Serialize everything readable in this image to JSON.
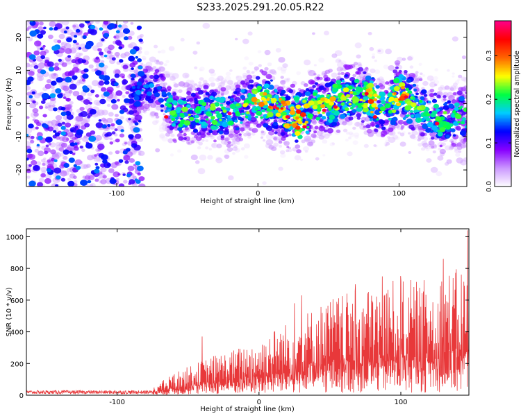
{
  "title": "S233.2025.291.20.05.R22",
  "chart_data": [
    {
      "type": "heatmap",
      "xlabel": "Height of straight line (km)",
      "ylabel": "Frequency (Hz)",
      "xlim": [
        -164,
        148
      ],
      "ylim": [
        -25,
        25
      ],
      "xticks": [
        -100,
        0,
        100
      ],
      "xtick_labels": [
        "-100",
        "0",
        "100"
      ],
      "yticks": [
        -20,
        -10,
        0,
        10,
        20
      ],
      "ytick_labels": [
        "-20",
        "-10",
        "0",
        "10",
        "20"
      ],
      "colorbar": {
        "label": "Normalized spectral amplitude",
        "range": [
          0.0,
          0.38
        ],
        "ticks": [
          0.0,
          0.1,
          0.2,
          0.3
        ],
        "tick_labels": [
          "0.0",
          "0.1",
          "0.2",
          "0.3"
        ],
        "colors": [
          "#ffffff",
          "#cc99ff",
          "#8800ff",
          "#0000ff",
          "#00ccff",
          "#00ff44",
          "#ffff00",
          "#ff6600",
          "#ff0000",
          "#ff0088"
        ]
      },
      "signal_trend": {
        "description": "frequency center (Hz) vs height (km)",
        "x": [
          -90,
          -80,
          -70,
          -60,
          -50,
          -40,
          -30,
          -20,
          -10,
          0,
          10,
          20,
          30,
          40,
          50,
          60,
          70,
          80,
          90,
          100,
          110,
          120,
          130,
          140,
          148
        ],
        "center": [
          2,
          5,
          4,
          -3,
          -4,
          -2,
          -3,
          -4,
          -1,
          1,
          0,
          -3,
          -5,
          -1,
          0,
          2,
          3,
          1,
          -2,
          3,
          0,
          -3,
          -5,
          -4,
          -3
        ],
        "amplitude_peak": [
          0.12,
          0.15,
          0.14,
          0.2,
          0.22,
          0.2,
          0.24,
          0.2,
          0.22,
          0.26,
          0.28,
          0.3,
          0.32,
          0.24,
          0.26,
          0.28,
          0.22,
          0.3,
          0.2,
          0.3,
          0.22,
          0.2,
          0.22,
          0.2,
          0.2
        ]
      },
      "noise_region": {
        "x_range": [
          -164,
          -82
        ],
        "freq_range": [
          -25,
          25
        ]
      }
    },
    {
      "type": "line",
      "xlabel": "Height of straight line (km)",
      "ylabel": "SNR (10 * v/v)",
      "xlim": [
        -164,
        148
      ],
      "ylim": [
        0,
        1050
      ],
      "xticks": [
        -100,
        0,
        100
      ],
      "xtick_labels": [
        "-100",
        "0",
        "100"
      ],
      "yticks": [
        0,
        200,
        400,
        600,
        800,
        1000
      ],
      "ytick_labels": [
        "0",
        "200",
        "400",
        "600",
        "800",
        "1000"
      ],
      "series": [
        {
          "name": "SNR",
          "color": "#e8383a",
          "envelope_x": [
            -164,
            -140,
            -120,
            -100,
            -80,
            -70,
            -60,
            -50,
            -40,
            -30,
            -20,
            -10,
            0,
            10,
            20,
            30,
            40,
            50,
            60,
            70,
            80,
            90,
            100,
            110,
            120,
            130,
            140,
            148
          ],
          "envelope_max": [
            40,
            35,
            30,
            30,
            35,
            80,
            140,
            180,
            220,
            260,
            280,
            320,
            350,
            420,
            460,
            520,
            560,
            620,
            640,
            660,
            680,
            700,
            760,
            720,
            740,
            780,
            800,
            820
          ],
          "peaks": [
            {
              "x": -40,
              "y": 370
            },
            {
              "x": 25,
              "y": 580
            },
            {
              "x": 30,
              "y": 630
            },
            {
              "x": 68,
              "y": 700
            },
            {
              "x": 87,
              "y": 750
            },
            {
              "x": 100,
              "y": 720
            },
            {
              "x": 130,
              "y": 860
            },
            {
              "x": 147,
              "y": 1040
            }
          ]
        }
      ]
    }
  ]
}
